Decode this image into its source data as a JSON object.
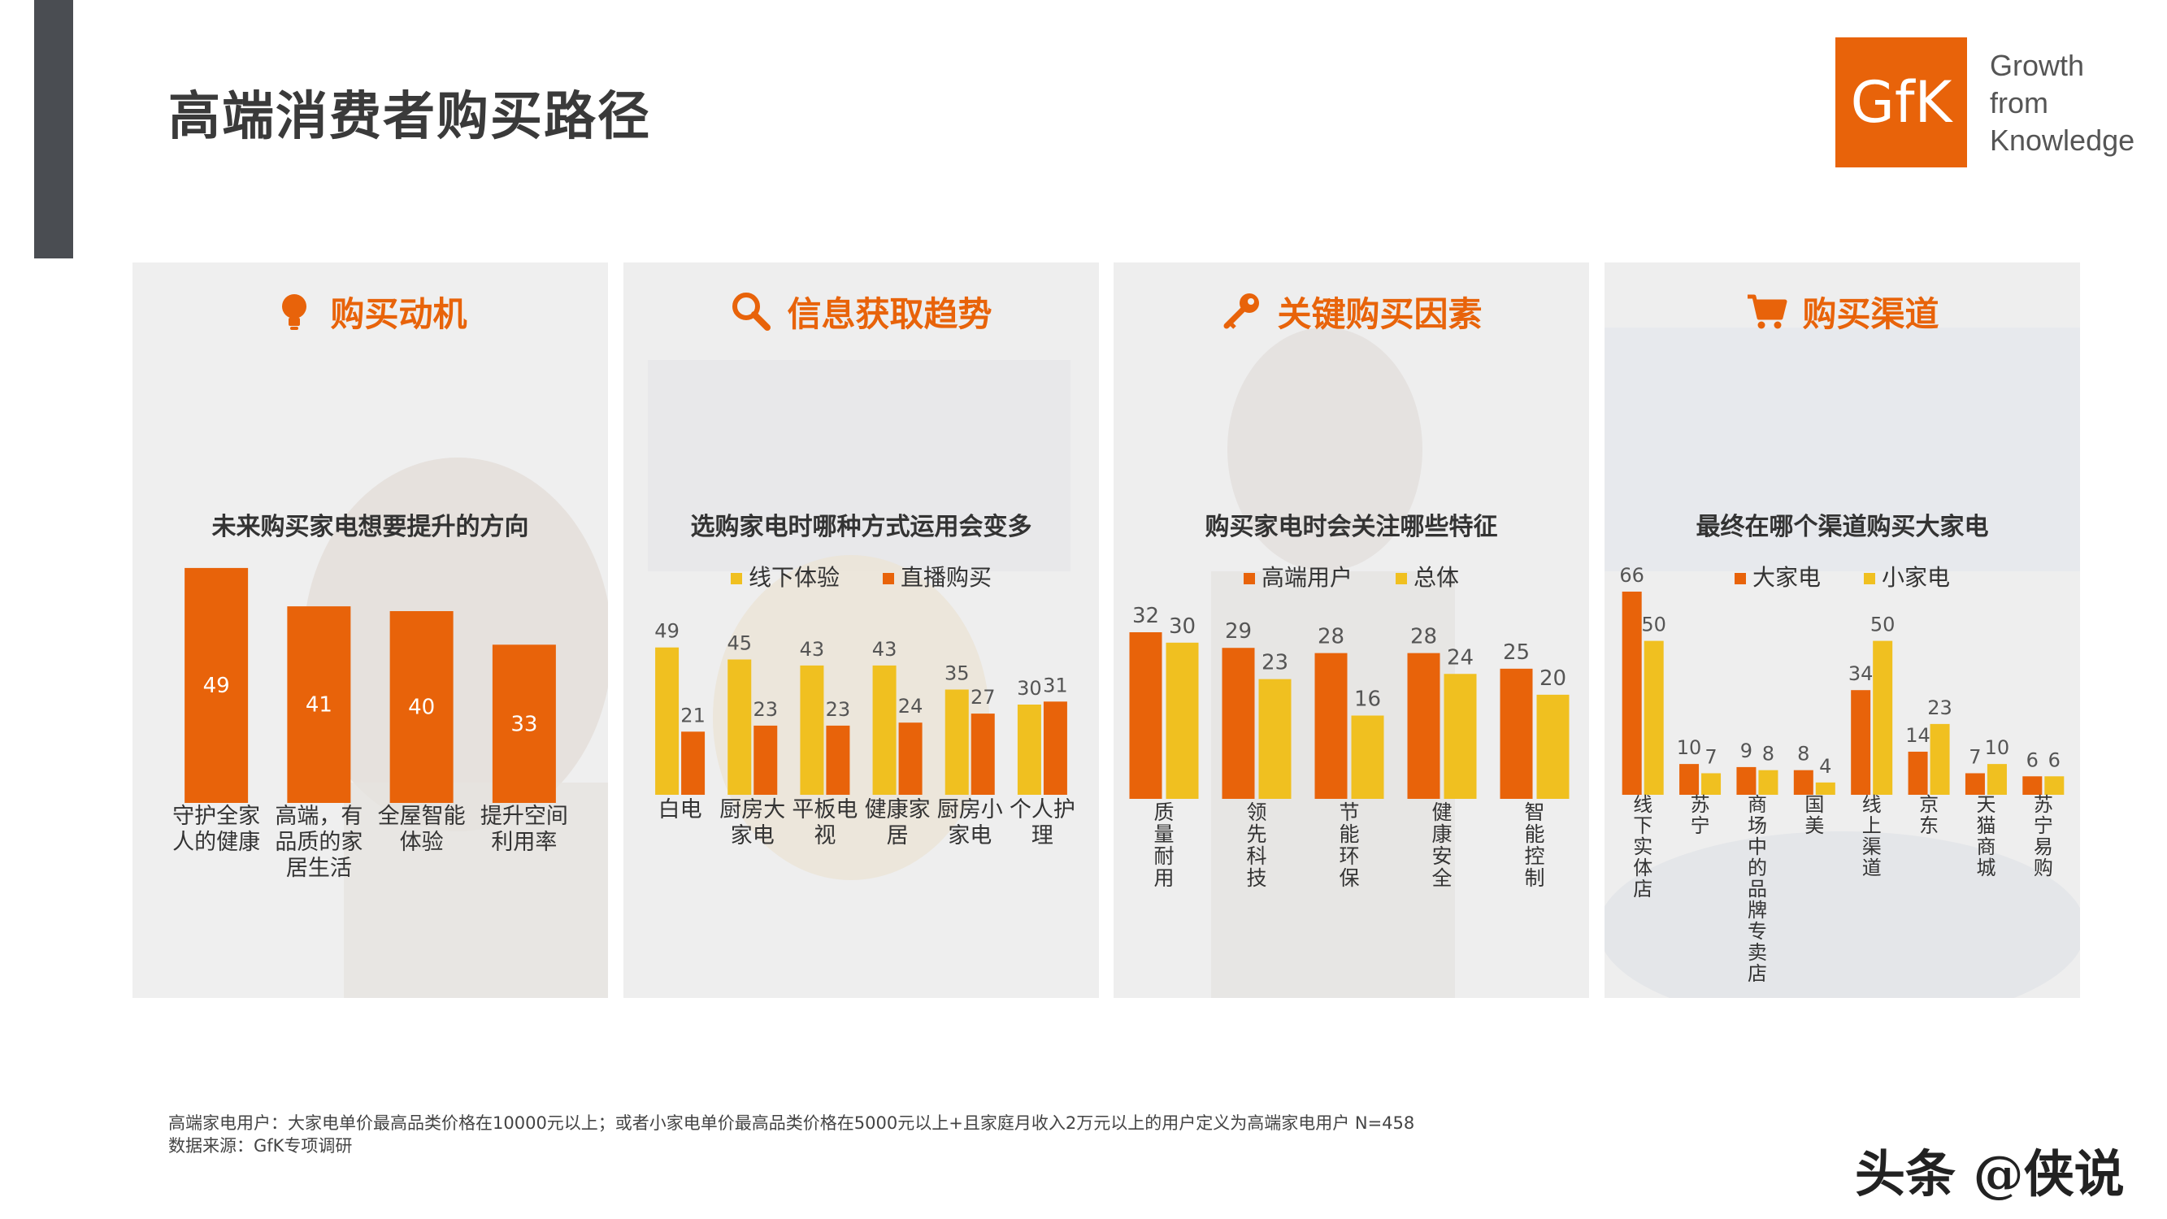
{
  "page": {
    "title": "高端消费者购买路径",
    "logo_text": "GfK",
    "tagline": [
      "Growth",
      "from",
      "Knowledge"
    ],
    "footnote": "高端家电用户：大家电单价最高品类价格在10000元以上；或者小家电单价最高品类价格在5000元以上+且家庭月收入2万元以上的用户定义为高端家电用户 N=458",
    "source": "数据来源：GfK专项调研",
    "watermark": "头条 @侠说",
    "colors": {
      "orange": "#e8630a",
      "yellow": "#f0c020",
      "panel_bg": "#eeeeee",
      "dark": "#4a4d52"
    }
  },
  "panels": [
    {
      "heading": "购买动机",
      "icon": "lightbulb-icon"
    },
    {
      "heading": "信息获取趋势",
      "icon": "search-icon"
    },
    {
      "heading": "关键购买因素",
      "icon": "key-icon"
    },
    {
      "heading": "购买渠道",
      "icon": "cart-icon"
    }
  ],
  "chart_data": [
    {
      "type": "bar",
      "title": "未来购买家电想要提升的方向",
      "categories": [
        "守护全家人的健康",
        "高端，有品质的家居生活",
        "全屋智能体验",
        "提升空间利用率"
      ],
      "category_lines": [
        [
          "守护全家",
          "人的健康"
        ],
        [
          "高端，有",
          "品质的家",
          "居生活"
        ],
        [
          "全屋智能",
          "体验"
        ],
        [
          "提升空间",
          "利用率"
        ]
      ],
      "series": [
        {
          "values": [
            49,
            41,
            40,
            33
          ],
          "color": "#e8630a"
        }
      ],
      "ylim": [
        0,
        50
      ],
      "labels_inside": true,
      "legend": "none"
    },
    {
      "type": "bar",
      "title": "选购家电时哪种方式运用会变多",
      "categories": [
        "白电",
        "厨房大家电",
        "平板电视",
        "健康家居",
        "厨房小家电",
        "个人护理"
      ],
      "category_lines": [
        [
          "白电"
        ],
        [
          "厨房大",
          "家电"
        ],
        [
          "平板电",
          "视"
        ],
        [
          "健康家",
          "居"
        ],
        [
          "厨房小",
          "家电"
        ],
        [
          "个人护",
          "理"
        ]
      ],
      "series": [
        {
          "name": "线下体验",
          "values": [
            49,
            45,
            43,
            43,
            35,
            30
          ],
          "color": "#f0c020"
        },
        {
          "name": "直播购买",
          "values": [
            21,
            23,
            23,
            24,
            27,
            31
          ],
          "color": "#e8630a"
        }
      ],
      "ylim": [
        0,
        50
      ],
      "legend": "top"
    },
    {
      "type": "bar",
      "title": "购买家电时会关注哪些特征",
      "categories": [
        "质量耐用",
        "领先科技",
        "节能环保",
        "健康安全",
        "智能控制"
      ],
      "category_lines": [
        [
          "质",
          "量",
          "耐",
          "用"
        ],
        [
          "领",
          "先",
          "科",
          "技"
        ],
        [
          "节",
          "能",
          "环",
          "保"
        ],
        [
          "健",
          "康",
          "安",
          "全"
        ],
        [
          "智",
          "能",
          "控",
          "制"
        ]
      ],
      "series": [
        {
          "name": "高端用户",
          "values": [
            32,
            29,
            28,
            28,
            25
          ],
          "color": "#e8630a"
        },
        {
          "name": "总体",
          "values": [
            30,
            23,
            16,
            24,
            20
          ],
          "color": "#f0c020"
        }
      ],
      "ylim": [
        0,
        32
      ],
      "legend": "top"
    },
    {
      "type": "bar",
      "title": "最终在哪个渠道购买大家电",
      "categories": [
        "线下实体店",
        "苏宁",
        "商场中的品牌专卖店",
        "国美",
        "线上渠道",
        "京东",
        "天猫商城",
        "苏宁易购"
      ],
      "category_lines": [
        [
          "线",
          "下",
          "实",
          "体",
          "店"
        ],
        [
          "苏",
          "宁"
        ],
        [
          "商",
          "场",
          "中",
          "的",
          "品",
          "牌",
          "专",
          "卖",
          "店"
        ],
        [
          "国",
          "美"
        ],
        [
          "线",
          "上",
          "渠",
          "道"
        ],
        [
          "京",
          "东"
        ],
        [
          "天",
          "猫",
          "商",
          "城"
        ],
        [
          "苏",
          "宁",
          "易",
          "购"
        ]
      ],
      "series": [
        {
          "name": "大家电",
          "values": [
            66,
            10,
            9,
            8,
            34,
            14,
            7,
            6
          ],
          "color": "#e8630a"
        },
        {
          "name": "小家电",
          "values": [
            50,
            7,
            8,
            4,
            50,
            23,
            10,
            6
          ],
          "color": "#f0c020"
        }
      ],
      "ylim": [
        0,
        66
      ],
      "legend": "top"
    }
  ]
}
